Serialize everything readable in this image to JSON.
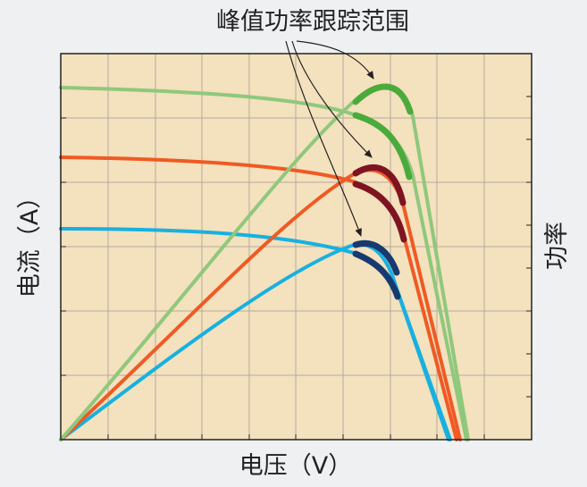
{
  "annotation": {
    "text": "峰值功率跟踪范围"
  },
  "axes": {
    "x_label": "电压（V）",
    "y_label": "电流（A）",
    "y2_label": "功率"
  },
  "colors": {
    "background": "#eff0f2",
    "plot_fill": "#f4e1bd",
    "grid": "#b3ab9e",
    "frame": "#222222",
    "light_green": "#8fc87c",
    "dark_green": "#4aab3c",
    "orange": "#ef5a24",
    "dark_red": "#7e1421",
    "cyan": "#17b1e0",
    "navy": "#173a70",
    "arrow": "#222222"
  },
  "chart_data": {
    "type": "line",
    "title": "",
    "description_series": [
      {
        "series": "current-high",
        "color": "light_green"
      },
      {
        "series": "power-high",
        "color": "light_green"
      },
      {
        "series": "current-mid",
        "color": "orange"
      },
      {
        "series": "power-mid",
        "color": "orange"
      },
      {
        "series": "current-low",
        "color": "cyan"
      },
      {
        "series": "power-low",
        "color": "cyan"
      }
    ],
    "grid": true
  }
}
